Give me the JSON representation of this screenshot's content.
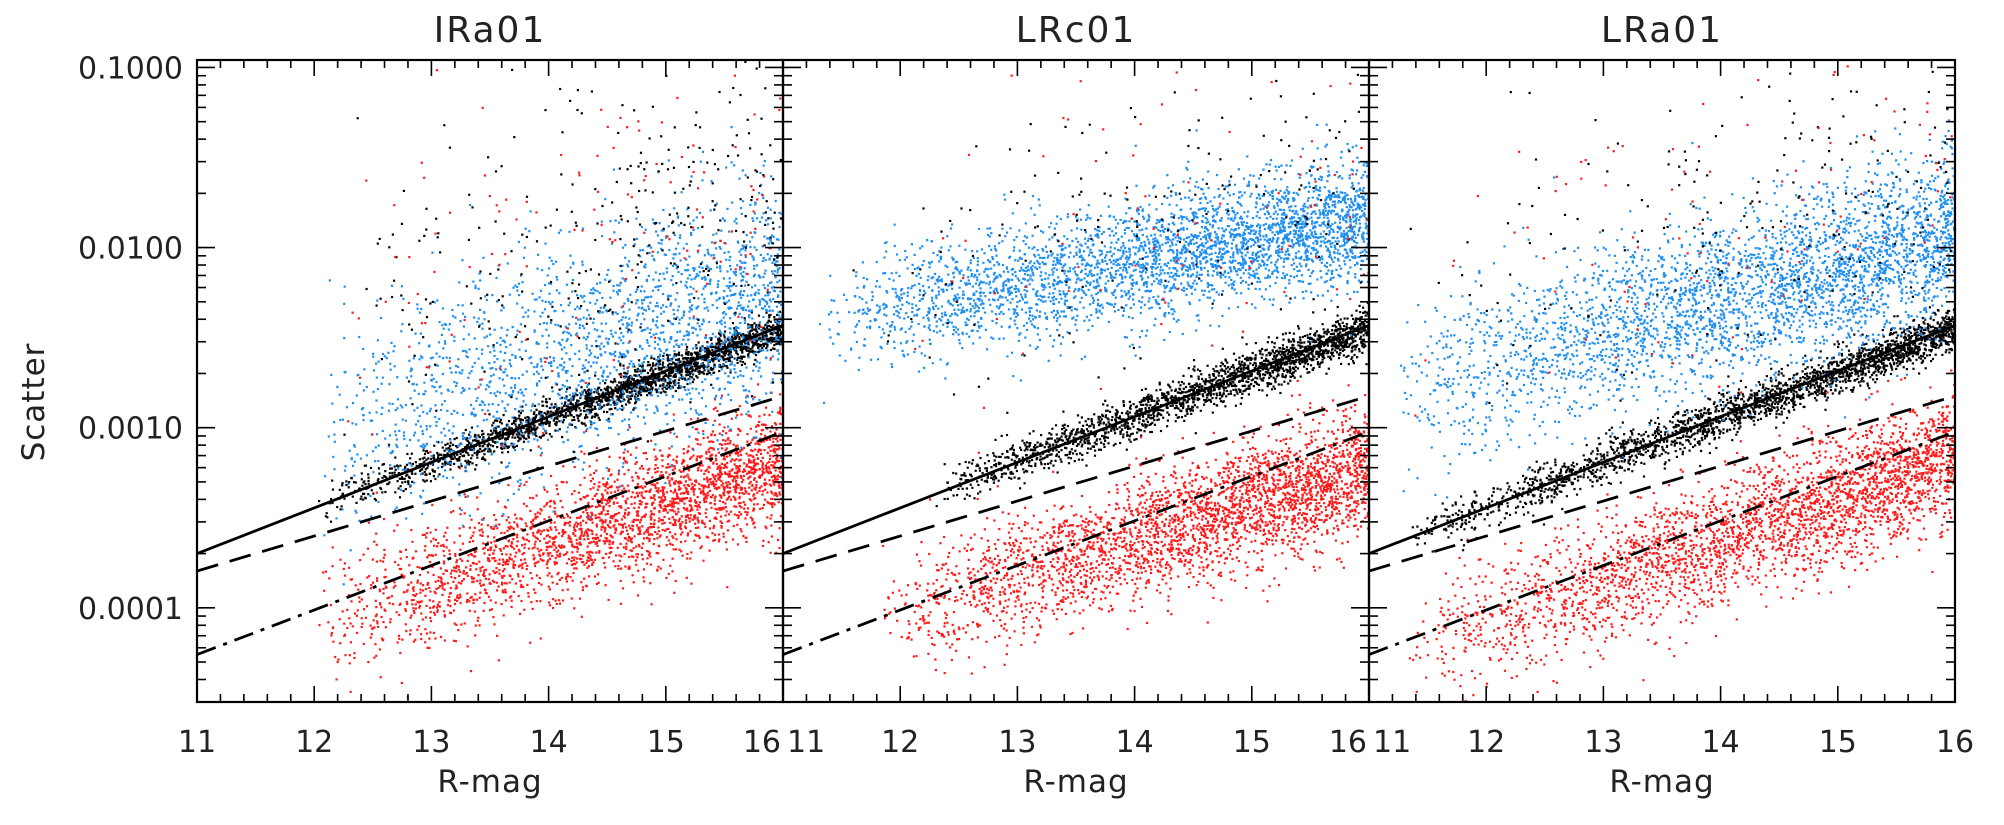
{
  "chart_data": {
    "type": "scatter",
    "ylabel": "Scatter",
    "xlabel": "R-mag",
    "yscale": "log",
    "xlim": [
      11,
      16
    ],
    "ylim": [
      3e-05,
      0.11
    ],
    "x_ticks": [
      "11",
      "12",
      "13",
      "14",
      "15",
      "16"
    ],
    "y_ticks": [
      "0.0001",
      "0.0010",
      "0.0100",
      "0.1000"
    ],
    "y_tick_values": [
      0.0001,
      0.001,
      0.01,
      0.1
    ],
    "reference_lines": [
      {
        "name": "solid",
        "style": "solid",
        "x": [
          11,
          16
        ],
        "y": [
          0.0002,
          0.0037
        ]
      },
      {
        "name": "dashed",
        "style": "dashed",
        "x": [
          11,
          16
        ],
        "y": [
          0.00016,
          0.0015
        ]
      },
      {
        "name": "dash-dot",
        "style": "dashdot",
        "x": [
          11,
          16
        ],
        "y": [
          5.5e-05,
          0.00095
        ]
      }
    ],
    "series_colors": {
      "blue": "#1f8ff0",
      "black": "#000000",
      "red": "#ff1a1a"
    },
    "panels": [
      {
        "title": "IRa01",
        "populations": [
          {
            "name": "red",
            "color": "red",
            "count": 2600,
            "x_range": [
              12.0,
              16.0
            ],
            "y_at_11": 5e-05,
            "y_at_16": 0.00065,
            "spread_dex": 0.17
          },
          {
            "name": "black",
            "color": "black",
            "count": 2100,
            "x_range": [
              12.0,
              16.0
            ],
            "y_at_11": 0.00021,
            "y_at_16": 0.0036,
            "spread_dex": 0.05
          },
          {
            "name": "blue",
            "color": "blue",
            "count": 2000,
            "x_range": [
              12.0,
              16.0
            ],
            "y_at_11": 0.0006,
            "y_at_16": 0.006,
            "spread_dex": 0.32
          },
          {
            "name": "black-scatter",
            "color": "black",
            "count": 320,
            "x_range": [
              12.0,
              16.0
            ],
            "y_at_11": 0.003,
            "y_at_16": 0.02,
            "spread_dex": 0.5
          },
          {
            "name": "red-scatter",
            "color": "red",
            "count": 150,
            "x_range": [
              12.0,
              16.0
            ],
            "y_at_11": 0.003,
            "y_at_16": 0.02,
            "spread_dex": 0.5
          }
        ]
      },
      {
        "title": "LRc01",
        "populations": [
          {
            "name": "red",
            "color": "red",
            "count": 3000,
            "x_range": [
              11.8,
              16.0
            ],
            "y_at_11": 6e-05,
            "y_at_16": 0.0006,
            "spread_dex": 0.17
          },
          {
            "name": "black",
            "color": "black",
            "count": 2000,
            "x_range": [
              12.3,
              16.0
            ],
            "y_at_11": 0.00022,
            "y_at_16": 0.0036,
            "spread_dex": 0.06
          },
          {
            "name": "blue",
            "color": "blue",
            "count": 3300,
            "x_range": [
              11.3,
              16.0
            ],
            "y_at_11": 0.0035,
            "y_at_16": 0.015,
            "spread_dex": 0.17
          },
          {
            "name": "black-scatter",
            "color": "black",
            "count": 180,
            "x_range": [
              11.5,
              16.0
            ],
            "y_at_11": 0.005,
            "y_at_16": 0.03,
            "spread_dex": 0.45
          },
          {
            "name": "red-scatter",
            "color": "red",
            "count": 90,
            "x_range": [
              11.5,
              16.0
            ],
            "y_at_11": 0.005,
            "y_at_16": 0.03,
            "spread_dex": 0.45
          }
        ]
      },
      {
        "title": "LRa01",
        "populations": [
          {
            "name": "red",
            "color": "red",
            "count": 3000,
            "x_range": [
              11.3,
              16.0
            ],
            "y_at_11": 5e-05,
            "y_at_16": 0.0007,
            "spread_dex": 0.18
          },
          {
            "name": "black",
            "color": "black",
            "count": 2300,
            "x_range": [
              11.3,
              16.0
            ],
            "y_at_11": 0.00021,
            "y_at_16": 0.0036,
            "spread_dex": 0.06
          },
          {
            "name": "blue",
            "color": "blue",
            "count": 3300,
            "x_range": [
              11.2,
              16.0
            ],
            "y_at_11": 0.0015,
            "y_at_16": 0.012,
            "spread_dex": 0.24
          },
          {
            "name": "black-scatter",
            "color": "black",
            "count": 220,
            "x_range": [
              11.3,
              16.0
            ],
            "y_at_11": 0.004,
            "y_at_16": 0.03,
            "spread_dex": 0.45
          },
          {
            "name": "red-scatter",
            "color": "red",
            "count": 110,
            "x_range": [
              11.3,
              16.0
            ],
            "y_at_11": 0.004,
            "y_at_16": 0.03,
            "spread_dex": 0.45
          }
        ]
      }
    ]
  }
}
